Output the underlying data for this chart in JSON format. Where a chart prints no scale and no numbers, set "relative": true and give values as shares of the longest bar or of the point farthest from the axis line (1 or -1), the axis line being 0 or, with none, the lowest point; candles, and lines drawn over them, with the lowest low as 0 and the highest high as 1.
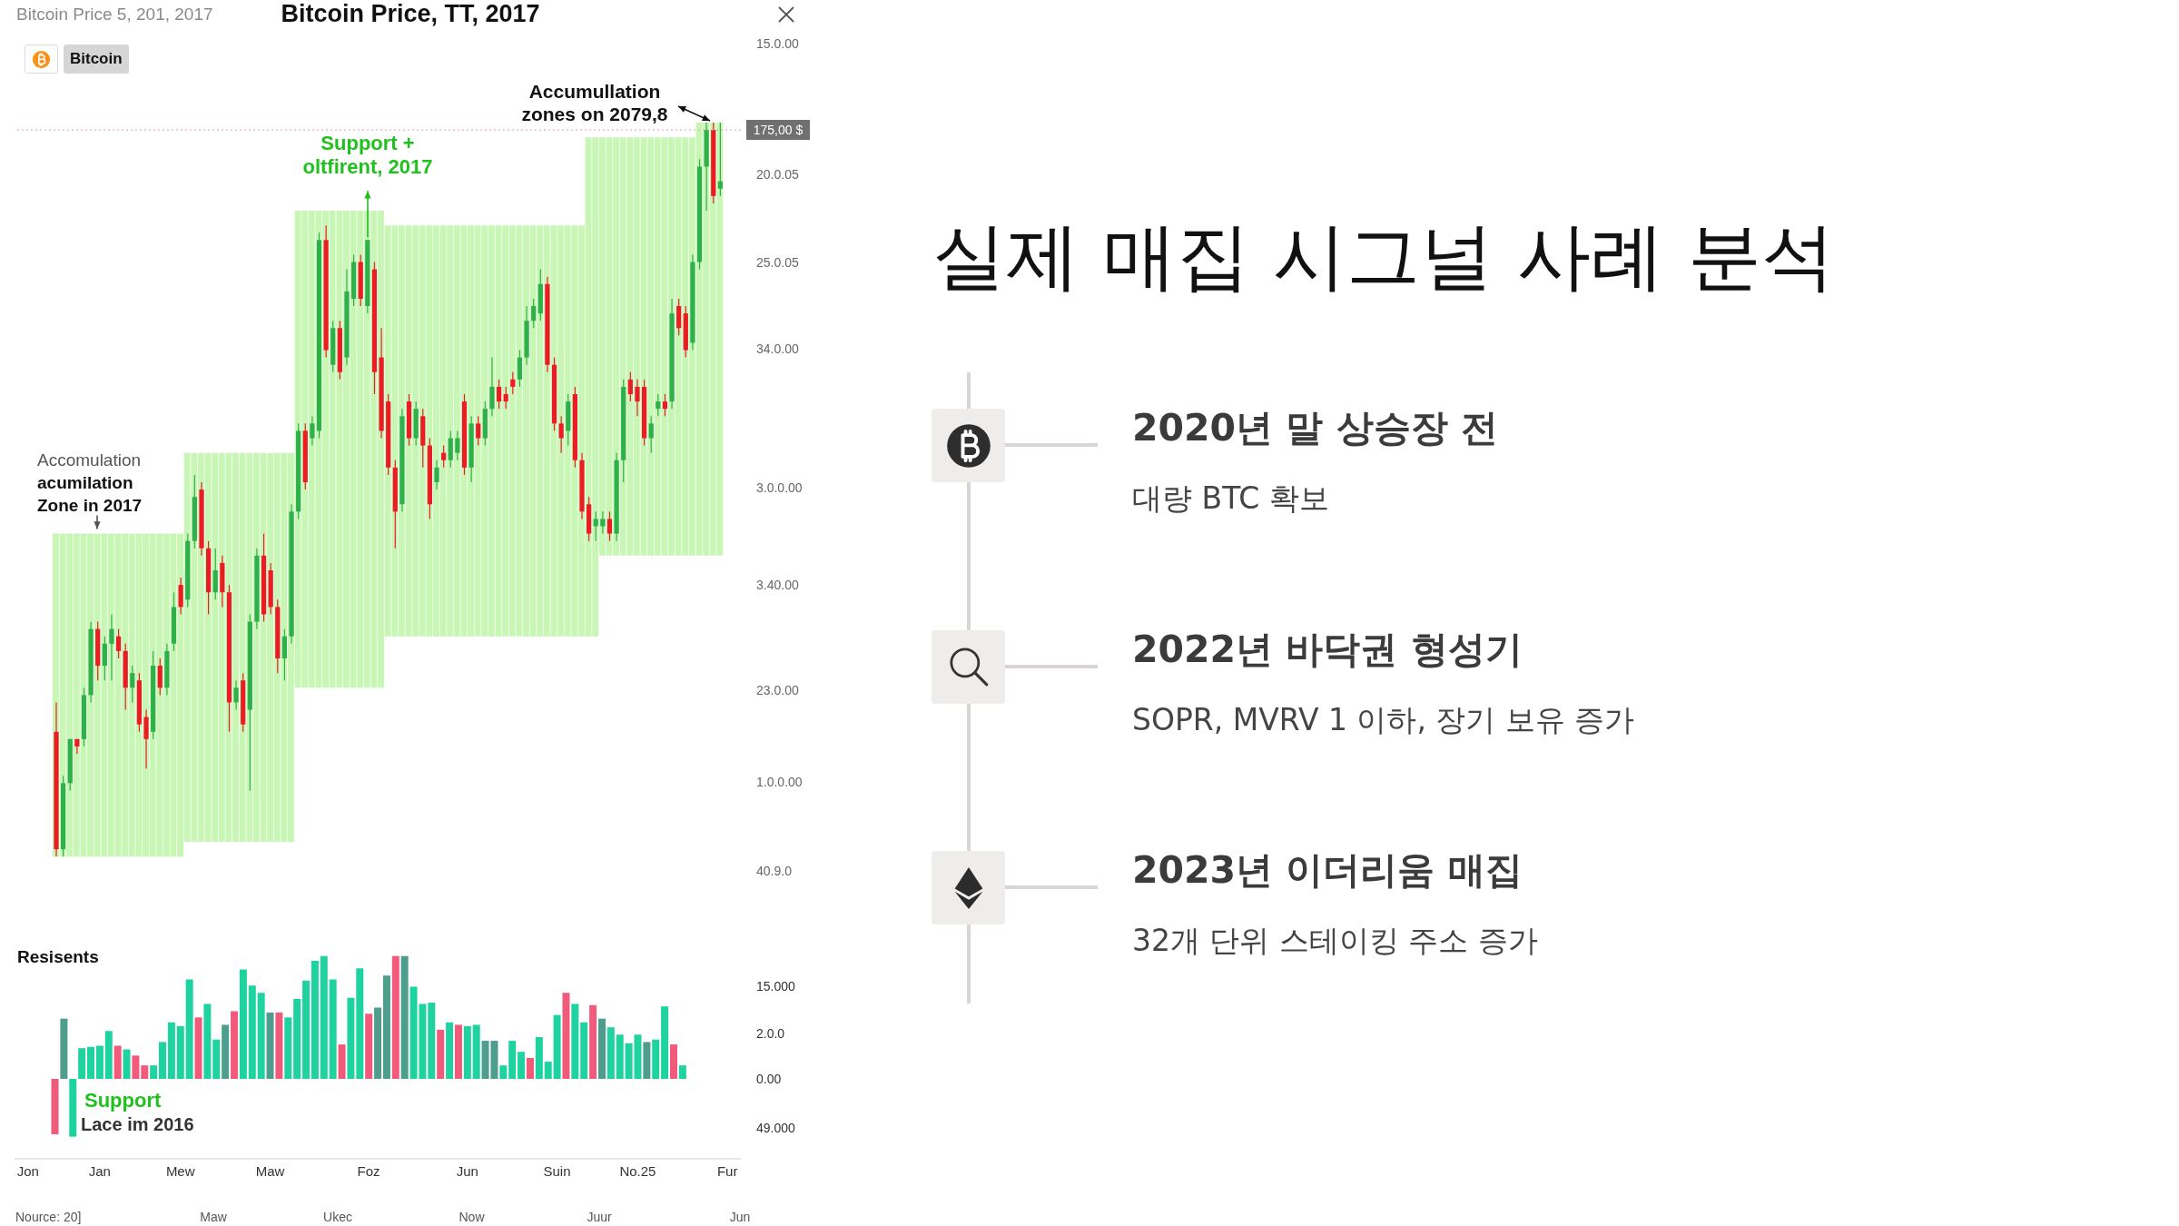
{
  "chart_data": [
    {
      "type": "candlestick",
      "title": "Bitcoin Price, TT, 2017",
      "subtitle": "Bitcoin Price 5, 201, 2017",
      "relative": true,
      "categories": [
        null,
        null,
        null,
        null,
        null,
        null,
        null,
        null,
        null,
        null,
        null,
        null,
        null,
        null,
        null,
        null,
        null,
        null,
        null,
        null,
        null,
        null,
        null,
        null,
        null,
        null,
        null,
        null,
        null,
        null,
        null,
        null,
        null,
        null,
        null,
        null,
        null,
        null,
        null,
        null,
        null,
        null,
        null,
        null,
        null,
        null,
        null,
        null,
        null,
        null,
        null,
        null,
        null,
        null,
        null,
        null,
        null,
        null,
        null,
        null,
        null,
        null,
        null,
        null,
        null,
        null,
        null,
        null,
        null,
        null,
        null,
        null,
        null,
        null,
        null,
        null,
        null,
        null,
        null,
        null,
        null,
        null,
        null,
        null,
        null,
        null,
        null,
        null,
        null,
        null,
        null,
        null,
        null,
        null,
        null,
        null,
        null
      ],
      "series": [
        {
          "type": "bar",
          "color": "#c8f6b4",
          "base": [
            0,
            0,
            0,
            0,
            0,
            0,
            0,
            0,
            0,
            0,
            0,
            0,
            0,
            0,
            0,
            0,
            0,
            0,
            0,
            0.02,
            0.02,
            0.02,
            0.02,
            0.02,
            0.02,
            0.02,
            0.02,
            0.02,
            0.02,
            0.02,
            0.02,
            0.02,
            0.02,
            0.02,
            0.02,
            0.23,
            0.23,
            0.23,
            0.23,
            0.23,
            0.23,
            0.23,
            0.23,
            0.23,
            0.23,
            0.23,
            0.23,
            0.23,
            0.3,
            0.3,
            0.3,
            0.3,
            0.3,
            0.3,
            0.3,
            0.3,
            0.3,
            0.3,
            0.3,
            0.3,
            0.3,
            0.3,
            0.3,
            0.3,
            0.3,
            0.3,
            0.3,
            0.3,
            0.3,
            0.3,
            0.3,
            0.3,
            0.3,
            0.3,
            0.3,
            0.3,
            0.3,
            0.3,
            0.3,
            0.41,
            0.41,
            0.41,
            0.41,
            0.41,
            0.41,
            0.41,
            0.41,
            0.41,
            0.41,
            0.41,
            0.41,
            0.41,
            0.41,
            0.41,
            0.41,
            0.41,
            0.41
          ],
          "values": [
            0.44,
            0.44,
            0.44,
            0.44,
            0.44,
            0.44,
            0.44,
            0.44,
            0.44,
            0.44,
            0.44,
            0.44,
            0.44,
            0.44,
            0.44,
            0.44,
            0.44,
            0.44,
            0.44,
            0.53,
            0.53,
            0.53,
            0.53,
            0.53,
            0.53,
            0.53,
            0.53,
            0.53,
            0.53,
            0.53,
            0.53,
            0.53,
            0.53,
            0.53,
            0.53,
            0.65,
            0.65,
            0.65,
            0.65,
            0.65,
            0.65,
            0.65,
            0.65,
            0.65,
            0.65,
            0.65,
            0.65,
            0.65,
            0.56,
            0.56,
            0.56,
            0.56,
            0.56,
            0.56,
            0.56,
            0.56,
            0.56,
            0.56,
            0.56,
            0.56,
            0.56,
            0.56,
            0.56,
            0.56,
            0.56,
            0.56,
            0.56,
            0.56,
            0.56,
            0.56,
            0.56,
            0.56,
            0.56,
            0.56,
            0.56,
            0.56,
            0.56,
            0.68,
            0.68,
            0.57,
            0.57,
            0.57,
            0.57,
            0.57,
            0.57,
            0.57,
            0.57,
            0.57,
            0.57,
            0.57,
            0.57,
            0.57,
            0.57,
            0.59,
            0.59,
            0.59,
            0.59
          ]
        },
        {
          "type": "candlestick",
          "name": "Bitcoin",
          "ohlc": [
            [
              0.17,
              0.21,
              0,
              0.01
            ],
            [
              0.01,
              0.11,
              0,
              0.1
            ],
            [
              0.1,
              0.16,
              0.09,
              0.16
            ],
            [
              0.16,
              0.16,
              0.14,
              0.15
            ],
            [
              0.16,
              0.23,
              0.15,
              0.22
            ],
            [
              0.22,
              0.32,
              0.21,
              0.31
            ],
            [
              0.31,
              0.32,
              0.24,
              0.26
            ],
            [
              0.26,
              0.3,
              0.24,
              0.29
            ],
            [
              0.29,
              0.33,
              0.24,
              0.31
            ],
            [
              0.3,
              0.31,
              0.27,
              0.28
            ],
            [
              0.28,
              0.29,
              0.2,
              0.23
            ],
            [
              0.23,
              0.26,
              0.21,
              0.25
            ],
            [
              0.24,
              0.25,
              0.17,
              0.18
            ],
            [
              0.19,
              0.2,
              0.12,
              0.16
            ],
            [
              0.17,
              0.28,
              0.16,
              0.26
            ],
            [
              0.26,
              0.27,
              0.22,
              0.23
            ],
            [
              0.23,
              0.29,
              0.22,
              0.28
            ],
            [
              0.29,
              0.36,
              0.28,
              0.34
            ],
            [
              0.37,
              0.38,
              0.33,
              0.34
            ],
            [
              0.35,
              0.44,
              0.34,
              0.43
            ],
            [
              0.43,
              0.52,
              0.42,
              0.49
            ],
            [
              0.5,
              0.51,
              0.41,
              0.42
            ],
            [
              0.42,
              0.43,
              0.33,
              0.36
            ],
            [
              0.36,
              0.42,
              0.35,
              0.39
            ],
            [
              0.4,
              0.41,
              0.34,
              0.36
            ],
            [
              0.36,
              0.37,
              0.17,
              0.21
            ],
            [
              0.21,
              0.24,
              0.2,
              0.23
            ],
            [
              0.24,
              0.25,
              0.17,
              0.18
            ],
            [
              0.2,
              0.33,
              0.09,
              0.32
            ],
            [
              0.32,
              0.42,
              0.31,
              0.41
            ],
            [
              0.41,
              0.44,
              0.32,
              0.33
            ],
            [
              0.39,
              0.4,
              0.33,
              0.34
            ],
            [
              0.34,
              0.35,
              0.25,
              0.27
            ],
            [
              0.27,
              0.31,
              0.24,
              0.3
            ],
            [
              0.3,
              0.48,
              0.29,
              0.47
            ],
            [
              0.47,
              0.59,
              0.46,
              0.58
            ],
            [
              0.58,
              0.59,
              0.5,
              0.51
            ],
            [
              0.57,
              0.6,
              0.56,
              0.59
            ],
            [
              0.58,
              0.85,
              0.57,
              0.84
            ],
            [
              0.84,
              0.86,
              0.68,
              0.69
            ],
            [
              0.67,
              0.73,
              0.66,
              0.72
            ],
            [
              0.72,
              0.73,
              0.65,
              0.66
            ],
            [
              0.68,
              0.8,
              0.67,
              0.77
            ],
            [
              0.76,
              0.82,
              0.75,
              0.81
            ],
            [
              0.81,
              0.82,
              0.75,
              0.76
            ],
            [
              0.75,
              0.84,
              0.74,
              0.84
            ],
            [
              0.8,
              0.81,
              0.63,
              0.66
            ],
            [
              0.68,
              0.72,
              0.57,
              0.58
            ],
            [
              0.62,
              0.63,
              0.52,
              0.53
            ],
            [
              0.53,
              0.54,
              0.42,
              0.47
            ],
            [
              0.48,
              0.61,
              0.47,
              0.6
            ],
            [
              0.62,
              0.63,
              0.56,
              0.57
            ],
            [
              0.57,
              0.62,
              0.56,
              0.61
            ],
            [
              0.6,
              0.61,
              0.53,
              0.56
            ],
            [
              0.56,
              0.57,
              0.46,
              0.48
            ],
            [
              0.51,
              0.54,
              0.5,
              0.53
            ],
            [
              0.55,
              0.56,
              0.53,
              0.54
            ],
            [
              0.54,
              0.58,
              0.53,
              0.57
            ],
            [
              0.55,
              0.58,
              0.54,
              0.57
            ],
            [
              0.62,
              0.63,
              0.52,
              0.53
            ],
            [
              0.53,
              0.6,
              0.51,
              0.59
            ],
            [
              0.59,
              0.6,
              0.56,
              0.57
            ],
            [
              0.57,
              0.62,
              0.56,
              0.61
            ],
            [
              0.61,
              0.68,
              0.6,
              0.64
            ],
            [
              0.64,
              0.65,
              0.61,
              0.62
            ],
            [
              0.63,
              0.64,
              0.61,
              0.62
            ],
            [
              0.65,
              0.66,
              0.63,
              0.64
            ],
            [
              0.65,
              0.69,
              0.64,
              0.68
            ],
            [
              0.68,
              0.75,
              0.67,
              0.73
            ],
            [
              0.73,
              0.76,
              0.72,
              0.75
            ],
            [
              0.74,
              0.8,
              0.73,
              0.78
            ],
            [
              0.78,
              0.79,
              0.66,
              0.67
            ],
            [
              0.67,
              0.68,
              0.58,
              0.59
            ],
            [
              0.59,
              0.6,
              0.55,
              0.57
            ],
            [
              0.58,
              0.63,
              0.56,
              0.62
            ],
            [
              0.63,
              0.64,
              0.53,
              0.54
            ],
            [
              0.54,
              0.55,
              0.46,
              0.47
            ],
            [
              0.48,
              0.49,
              0.43,
              0.44
            ],
            [
              0.45,
              0.47,
              0.43,
              0.46
            ],
            [
              0.45,
              0.47,
              0.44,
              0.46
            ],
            [
              0.46,
              0.47,
              0.43,
              0.44
            ],
            [
              0.44,
              0.55,
              0.43,
              0.54
            ],
            [
              0.54,
              0.65,
              0.51,
              0.64
            ],
            [
              0.65,
              0.66,
              0.62,
              0.63
            ],
            [
              0.64,
              0.65,
              0.6,
              0.62
            ],
            [
              0.64,
              0.65,
              0.56,
              0.57
            ],
            [
              0.57,
              0.6,
              0.55,
              0.59
            ],
            [
              0.61,
              0.63,
              0.6,
              0.62
            ],
            [
              0.62,
              0.63,
              0.6,
              0.61
            ],
            [
              0.62,
              0.76,
              0.61,
              0.74
            ],
            [
              0.75,
              0.76,
              0.71,
              0.72
            ],
            [
              0.74,
              0.75,
              0.68,
              0.69
            ],
            [
              0.7,
              0.82,
              0.69,
              0.81
            ],
            [
              0.81,
              0.95,
              0.8,
              0.94
            ],
            [
              0.94,
              1,
              0.88,
              0.99
            ],
            [
              0.99,
              1,
              0.89,
              0.9
            ],
            [
              0.91,
              1,
              0.9,
              0.92
            ]
          ],
          "colors": [
            "#ec1c24",
            "#2eb04a",
            "#2eb04a",
            "#ec1c24",
            "#2eb04a",
            "#2eb04a",
            "#ec1c24",
            "#2eb04a",
            "#2eb04a",
            "#ec1c24",
            "#ec1c24",
            "#2eb04a",
            "#ec1c24",
            "#ec1c24",
            "#2eb04a",
            "#ec1c24",
            "#2eb04a",
            "#2eb04a",
            "#ec1c24",
            "#2eb04a",
            "#2eb04a",
            "#ec1c24",
            "#ec1c24",
            "#2eb04a",
            "#ec1c24",
            "#ec1c24",
            "#2eb04a",
            "#ec1c24",
            "#2eb04a",
            "#2eb04a",
            "#ec1c24",
            "#ec1c24",
            "#ec1c24",
            "#2eb04a",
            "#2eb04a",
            "#2eb04a",
            "#ec1c24",
            "#2eb04a",
            "#2eb04a",
            "#ec1c24",
            "#2eb04a",
            "#ec1c24",
            "#2eb04a",
            "#2eb04a",
            "#ec1c24",
            "#2eb04a",
            "#ec1c24",
            "#ec1c24",
            "#ec1c24",
            "#ec1c24",
            "#2eb04a",
            "#ec1c24",
            "#2eb04a",
            "#ec1c24",
            "#ec1c24",
            "#2eb04a",
            "#ec1c24",
            "#2eb04a",
            "#2eb04a",
            "#ec1c24",
            "#2eb04a",
            "#ec1c24",
            "#2eb04a",
            "#2eb04a",
            "#ec1c24",
            "#ec1c24",
            "#ec1c24",
            "#2eb04a",
            "#2eb04a",
            "#2eb04a",
            "#2eb04a",
            "#ec1c24",
            "#ec1c24",
            "#ec1c24",
            "#2eb04a",
            "#ec1c24",
            "#ec1c24",
            "#ec1c24",
            "#2eb04a",
            "#2eb04a",
            "#ec1c24",
            "#2eb04a",
            "#2eb04a",
            "#ec1c24",
            "#ec1c24",
            "#ec1c24",
            "#2eb04a",
            "#2eb04a",
            "#ec1c24",
            "#2eb04a",
            "#ec1c24",
            "#ec1c24",
            "#2eb04a",
            "#2eb04a",
            "#2eb04a",
            "#ec1c24",
            "#2eb04a"
          ]
        }
      ],
      "legend": "top left",
      "ref_lines": [
        {
          "axis": "y",
          "value": 0.99,
          "color": "#d4a4a4",
          "line_style": "dotted"
        }
      ],
      "annotations": [
        {
          "text": "Accomulation acumilation Zone in 2017",
          "y": 0.44
        },
        {
          "text": "Support + oltfirent, 2017",
          "y": 0.84
        },
        "Accumullation zones on 2079,8",
        "175,00 $",
        "15.0.00",
        "20.0.05",
        "25.0.05",
        "34.0.00",
        "3.0.0.00",
        "3.40.00",
        "23.0.00",
        "1.0.0.00",
        "40.9.0"
      ]
    },
    {
      "type": "bar",
      "title": "Resisents",
      "relative": true,
      "categories": [
        null,
        "Jon",
        null,
        null,
        null,
        null,
        null,
        null,
        null,
        "Jan",
        null,
        null,
        null,
        null,
        null,
        null,
        null,
        null,
        "Mew",
        null,
        null,
        null,
        null,
        null,
        null,
        null,
        null,
        null,
        "Maw",
        null,
        null,
        null,
        null,
        null,
        null,
        null,
        null,
        null,
        null,
        "Foz",
        null,
        null,
        null,
        null,
        null,
        null,
        null,
        null,
        null,
        null,
        "Jun",
        null,
        null,
        null,
        null,
        null,
        null,
        null,
        null,
        null,
        "Suin",
        null,
        null,
        null,
        null,
        null,
        null,
        null,
        null,
        "No.25",
        null,
        null,
        null,
        null,
        null,
        null,
        null,
        null,
        null,
        "Fur",
        null
      ],
      "values": [
        null,
        null,
        null,
        null,
        -0.45,
        0.49,
        -0.47,
        0.25,
        0.26,
        0.27,
        0.39,
        0.27,
        0.24,
        0.19,
        0.11,
        0.11,
        0.3,
        0.46,
        0.43,
        0.81,
        0.5,
        0.61,
        0.32,
        0.44,
        0.55,
        0.89,
        0.76,
        0.7,
        0.54,
        0.54,
        0.5,
        0.65,
        0.8,
        0.96,
        1,
        0.81,
        0.28,
        0.66,
        0.9,
        0.53,
        0.58,
        0.84,
        1,
        1,
        0.75,
        0.61,
        0.62,
        0.4,
        0.46,
        0.44,
        0.43,
        0.44,
        0.31,
        0.31,
        0.11,
        0.31,
        0.22,
        0.17,
        0.34,
        0.14,
        0.52,
        0.7,
        0.61,
        0.46,
        0.6,
        0.49,
        0.42,
        0.36,
        0.29,
        0.36,
        0.3,
        0.32,
        0.59,
        0.28,
        0.11,
        null,
        null,
        null,
        null,
        null,
        null
      ],
      "colors": [
        null,
        null,
        null,
        null,
        "#f25a7c",
        "#4f9d8d",
        "#1fd3a0",
        "#1fd3a0",
        "#1fd3a0",
        "#1fd3a0",
        "#1fd3a0",
        "#f25a7c",
        "#1fd3a0",
        "#f25a7c",
        "#f25a7c",
        "#1fd3a0",
        "#1fd3a0",
        "#1fd3a0",
        "#1fd3a0",
        "#1fd3a0",
        "#f25a7c",
        "#1fd3a0",
        "#1fd3a0",
        "#4f9d8d",
        "#f25a7c",
        "#1fd3a0",
        "#1fd3a0",
        "#1fd3a0",
        "#4f9d8d",
        "#f25a7c",
        "#1fd3a0",
        "#1fd3a0",
        "#1fd3a0",
        "#1fd3a0",
        "#1fd3a0",
        "#1fd3a0",
        "#f25a7c",
        "#1fd3a0",
        "#1fd3a0",
        "#f25a7c",
        "#4f9d8d",
        "#4f9d8d",
        "#f25a7c",
        "#4f9d8d",
        "#1fd3a0",
        "#1fd3a0",
        "#1fd3a0",
        "#f25a7c",
        "#1fd3a0",
        "#f25a7c",
        "#1fd3a0",
        "#1fd3a0",
        "#4f9d8d",
        "#4f9d8d",
        "#1fd3a0",
        "#1fd3a0",
        "#1fd3a0",
        "#f25a7c",
        "#1fd3a0",
        "#1fd3a0",
        "#1fd3a0",
        "#f25a7c",
        "#1fd3a0",
        "#1fd3a0",
        "#f25a7c",
        "#4f9d8d",
        "#1fd3a0",
        "#1fd3a0",
        "#1fd3a0",
        "#1fd3a0",
        "#4f9d8d",
        "#1fd3a0",
        "#1fd3a0",
        "#f25a7c",
        "#1fd3a0",
        null,
        null,
        null,
        null,
        null,
        null
      ],
      "annotations": [
        "Support",
        "Lace im 2016",
        "15.000",
        "2.0.0",
        "0.00",
        "49.000",
        "Nource: 20]",
        "Maw",
        "Ukec",
        "Now",
        "Juur",
        "Jun"
      ]
    },
    {
      "type": "other",
      "title": "실제 매집 시그널 사례 분석",
      "annotations": [
        "2020년 말 상승장 전",
        "대량 BTC 확보",
        "2022년 바닥권 형성기",
        "SOPR, MVRV 1 이하, 장기 보유 증가",
        "2023년 이더리움 매집",
        "32개 단위 스테이킹 주소 증가"
      ]
    }
  ]
}
